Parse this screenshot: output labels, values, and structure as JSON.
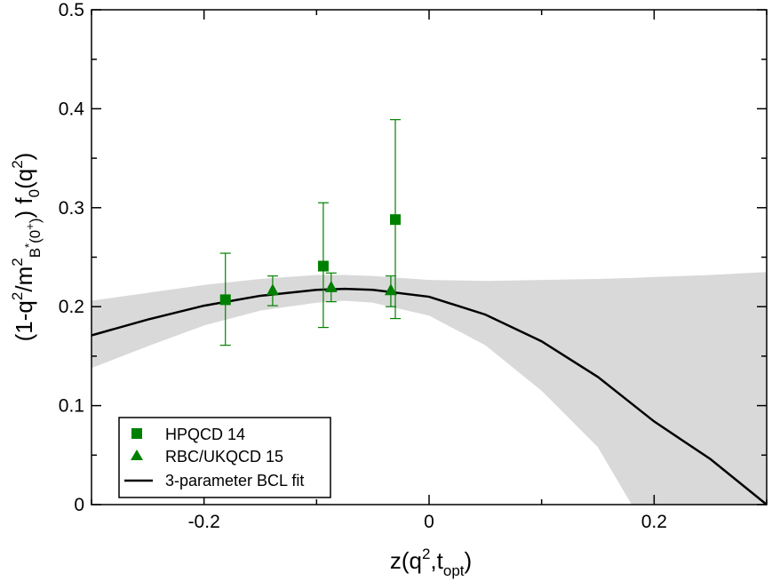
{
  "chart_data": {
    "type": "scatter",
    "title": "",
    "xlabel": "z(q2,topt)",
    "xlabel_parts": {
      "base": "z(q",
      "sup": "2",
      "mid": ",t",
      "sub": "opt",
      "end": ")"
    },
    "ylabel": "(1-q2/m2B*(0+)) f0(q2)",
    "xlim": [
      -0.3,
      0.3
    ],
    "ylim": [
      0,
      0.5
    ],
    "x_ticks": [
      -0.2,
      0,
      0.2
    ],
    "x_tick_labels": [
      "-0.2",
      "0",
      "0.2"
    ],
    "y_ticks": [
      0,
      0.1,
      0.2,
      0.3,
      0.4,
      0.5
    ],
    "y_tick_labels": [
      "0",
      "0.1",
      "0.2",
      "0.3",
      "0.4",
      "0.5"
    ],
    "grid": false,
    "legend_position": "bottom-left",
    "series": [
      {
        "name": "HPQCD 14",
        "marker": "square",
        "color": "#008000",
        "points": [
          {
            "x": -0.181,
            "y": 0.207,
            "err_low": 0.161,
            "err_high": 0.254
          },
          {
            "x": -0.094,
            "y": 0.241,
            "err_low": 0.179,
            "err_high": 0.305
          },
          {
            "x": -0.03,
            "y": 0.288,
            "err_low": 0.188,
            "err_high": 0.389
          }
        ]
      },
      {
        "name": "RBC/UKQCD 15",
        "marker": "triangle",
        "color": "#008000",
        "points": [
          {
            "x": -0.139,
            "y": 0.217,
            "err_low": 0.201,
            "err_high": 0.231
          },
          {
            "x": -0.087,
            "y": 0.22,
            "err_low": 0.205,
            "err_high": 0.234
          },
          {
            "x": -0.034,
            "y": 0.217,
            "err_low": 0.2,
            "err_high": 0.231
          }
        ]
      },
      {
        "name": "3-parameter BCL fit",
        "type": "line",
        "color": "#000000",
        "x": [
          -0.3,
          -0.25,
          -0.2,
          -0.15,
          -0.1,
          -0.075,
          -0.05,
          0.0,
          0.05,
          0.1,
          0.15,
          0.2,
          0.25,
          0.3
        ],
        "y": [
          0.171,
          0.187,
          0.201,
          0.211,
          0.217,
          0.218,
          0.217,
          0.21,
          0.192,
          0.165,
          0.129,
          0.084,
          0.046,
          0.0
        ]
      }
    ],
    "error_band": {
      "color": "#d9d9d9",
      "x": [
        -0.3,
        -0.25,
        -0.2,
        -0.15,
        -0.1,
        -0.075,
        -0.05,
        0.0,
        0.05,
        0.1,
        0.15,
        0.18,
        0.2,
        0.25,
        0.3
      ],
      "upper": [
        0.206,
        0.214,
        0.222,
        0.228,
        0.232,
        0.232,
        0.231,
        0.227,
        0.226,
        0.227,
        0.228,
        0.229,
        0.23,
        0.232,
        0.235
      ],
      "lower": [
        0.138,
        0.16,
        0.181,
        0.196,
        0.204,
        0.206,
        0.204,
        0.191,
        0.161,
        0.115,
        0.058,
        0.0,
        0.0,
        0.0,
        0.0
      ]
    }
  }
}
